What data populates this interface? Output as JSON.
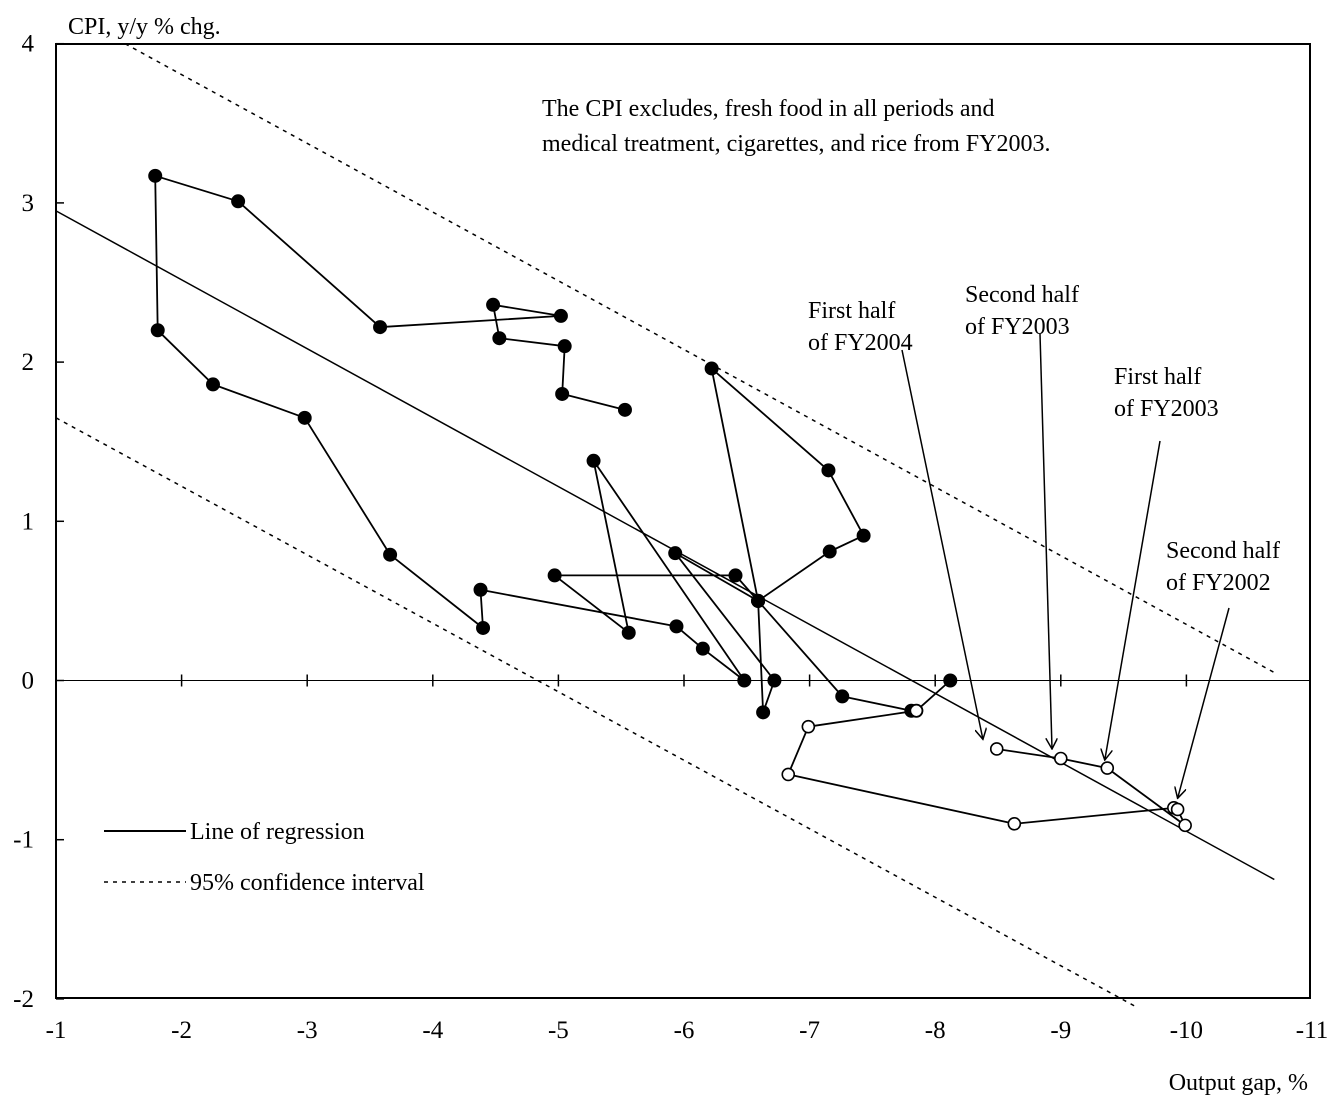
{
  "chart_data": {
    "type": "scatter",
    "ylabel": "CPI, y/y % chg.",
    "xlabel": "Output gap, %",
    "xlim": [
      -1,
      -11
    ],
    "ylim": [
      -2,
      4
    ],
    "x_ticks": [
      "-1",
      "-2",
      "-3",
      "-4",
      "-5",
      "-6",
      "-7",
      "-8",
      "-9",
      "-10",
      "-11"
    ],
    "y_ticks": [
      "4",
      "3",
      "2",
      "1",
      "0",
      "-1",
      "-2"
    ],
    "zero_line": true,
    "grid": false,
    "legend_position": "bottom-left",
    "note_lines": [
      "The CPI excludes, fresh food in all periods and",
      "medical treatment, cigarettes, and rice from FY2003."
    ],
    "legend": {
      "regression": "Line of regression",
      "confidence": "95% confidence interval"
    },
    "regression_line": {
      "x": [
        -1,
        -10.7
      ],
      "y": [
        2.95,
        -1.25
      ]
    },
    "confidence_upper": {
      "x": [
        -1.55,
        -10.7
      ],
      "y": [
        4.0,
        0.05
      ]
    },
    "confidence_lower": {
      "x": [
        -1,
        -9.6
      ],
      "y": [
        1.65,
        -2.05
      ]
    },
    "series": [
      {
        "marker": "filled",
        "points": [
          [
            -5.53,
            1.7
          ],
          [
            -5.03,
            1.8
          ],
          [
            -5.05,
            2.1
          ],
          [
            -4.53,
            2.15
          ],
          [
            -4.48,
            2.36
          ],
          [
            -5.02,
            2.29
          ],
          [
            -3.58,
            2.22
          ],
          [
            -2.45,
            3.01
          ],
          [
            -1.79,
            3.17
          ],
          [
            -1.81,
            2.2
          ],
          [
            -2.25,
            1.86
          ],
          [
            -2.98,
            1.65
          ],
          [
            -3.66,
            0.79
          ],
          [
            -4.4,
            0.33
          ],
          [
            -4.38,
            0.57
          ],
          [
            -5.94,
            0.34
          ],
          [
            -6.15,
            0.2
          ],
          [
            -6.48,
            0.0
          ],
          [
            -5.28,
            1.38
          ],
          [
            -5.56,
            0.3
          ],
          [
            -4.97,
            0.66
          ],
          [
            -6.41,
            0.66
          ],
          [
            -6.59,
            0.5
          ],
          [
            -7.16,
            0.81
          ],
          [
            -7.43,
            0.91
          ],
          [
            -7.15,
            1.32
          ],
          [
            -6.22,
            1.96
          ],
          [
            -6.59,
            0.5
          ],
          [
            -5.93,
            0.8
          ],
          [
            -6.72,
            0.0
          ],
          [
            -6.63,
            -0.2
          ],
          [
            -6.59,
            0.5
          ],
          [
            -7.26,
            -0.1
          ],
          [
            -7.81,
            -0.19
          ],
          [
            -7.85,
            -0.19
          ],
          [
            -8.12,
            0.0
          ]
        ]
      },
      {
        "marker": "open",
        "points": [
          [
            -7.85,
            -0.19
          ],
          [
            -6.99,
            -0.29
          ],
          [
            -6.83,
            -0.59
          ],
          [
            -8.63,
            -0.9
          ],
          [
            -9.9,
            -0.8
          ],
          [
            -9.93,
            -0.81
          ],
          [
            -9.99,
            -0.91
          ],
          [
            -9.37,
            -0.55
          ],
          [
            -9.0,
            -0.49
          ],
          [
            -8.49,
            -0.43
          ]
        ]
      }
    ],
    "annotations": [
      {
        "lines": [
          "First half",
          "of FY2004"
        ],
        "target": [
          -8.38,
          -0.37
        ]
      },
      {
        "lines": [
          "Second half",
          "of FY2003"
        ],
        "target": [
          -8.93,
          -0.43
        ]
      },
      {
        "lines": [
          "First half",
          "of FY2003"
        ],
        "target": [
          -9.35,
          -0.5
        ]
      },
      {
        "lines": [
          "Second half",
          "of FY2002"
        ],
        "target": [
          -9.93,
          -0.74
        ]
      }
    ]
  }
}
